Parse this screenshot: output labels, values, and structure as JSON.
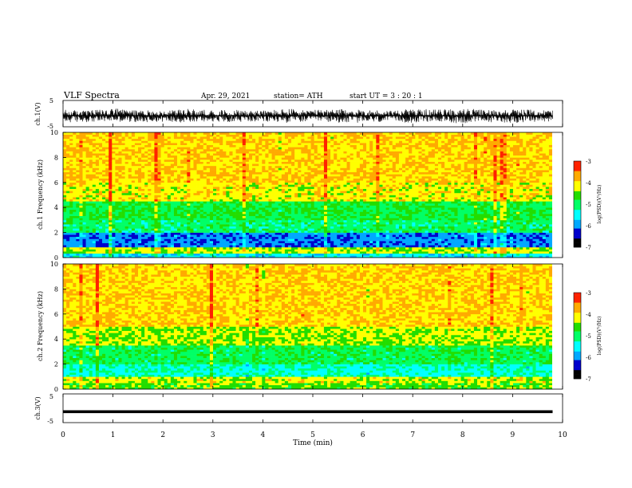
{
  "header": {
    "title": "VLF  Spectra",
    "date": "Apr. 29, 2021",
    "station": "station= ATH",
    "start": "start  UT  =    3  : 20 : 1"
  },
  "chart_data": [
    {
      "type": "line",
      "name": "ch1-waveform",
      "ylabel": "ch.1(V)",
      "ylim": [
        -5,
        5
      ],
      "yticks": [
        "5",
        "-5"
      ],
      "x": [
        0.0,
        0.5,
        1.0,
        1.5,
        2.0,
        2.5,
        3.0,
        3.5,
        4.0,
        4.5,
        5.0,
        5.5,
        6.0,
        6.5,
        7.0,
        7.5,
        8.0,
        8.5,
        9.0,
        9.5,
        9.8
      ],
      "y_range_low": [
        -3.5,
        -3.2,
        -3.0,
        -3.4,
        -3.1,
        -3.6,
        -3.0,
        -3.3,
        -3.2,
        -3.5,
        -3.0,
        -3.4,
        -3.6,
        -3.2,
        -3.5,
        -3.1,
        -3.8,
        -3.3,
        -3.5,
        -3.2,
        -3.0
      ],
      "y_range_high": [
        1.5,
        1.2,
        2.0,
        1.4,
        1.1,
        1.8,
        1.3,
        1.6,
        1.2,
        1.9,
        1.4,
        1.7,
        1.5,
        1.3,
        1.8,
        1.6,
        2.0,
        1.4,
        1.7,
        1.5,
        1.3
      ],
      "y_mean": -0.8
    },
    {
      "type": "heatmap",
      "name": "ch1-spectrogram",
      "ylabel": "ch.1  Frequency  (kHz)",
      "xlim": [
        0,
        10
      ],
      "ylim": [
        0,
        10
      ],
      "yticks": [
        "0",
        "2",
        "4",
        "6",
        "8",
        "10"
      ],
      "colorbar": {
        "label": "log(PSD)(V²/Hz)",
        "ticks": [
          "-3",
          "-4",
          "-5",
          "-6",
          "-7"
        ],
        "range": [
          -7,
          -3
        ]
      },
      "frequency_bands_khz": [
        {
          "from": 0.0,
          "to": 0.4,
          "log_psd": -5.5
        },
        {
          "from": 0.4,
          "to": 0.9,
          "log_psd": -4.3
        },
        {
          "from": 0.9,
          "to": 2.0,
          "log_psd": -6.0
        },
        {
          "from": 2.0,
          "to": 3.0,
          "log_psd": -5.0
        },
        {
          "from": 3.0,
          "to": 4.5,
          "log_psd": -4.8
        },
        {
          "from": 4.5,
          "to": 6.0,
          "log_psd": -4.1
        },
        {
          "from": 6.0,
          "to": 10.0,
          "log_psd": -3.9
        }
      ]
    },
    {
      "type": "heatmap",
      "name": "ch2-spectrogram",
      "ylabel": "ch.2  Frequency  (kHz)",
      "xlim": [
        0,
        10
      ],
      "ylim": [
        0,
        10
      ],
      "yticks": [
        "0",
        "2",
        "4",
        "6",
        "8",
        "10"
      ],
      "colorbar": {
        "label": "log(PSD)(V²/Hz)",
        "ticks": [
          "-3",
          "-4",
          "-5",
          "-6",
          "-7"
        ],
        "range": [
          -7,
          -3
        ]
      },
      "frequency_bands_khz": [
        {
          "from": 0.0,
          "to": 0.5,
          "log_psd": -4.5
        },
        {
          "from": 0.5,
          "to": 1.0,
          "log_psd": -4.2
        },
        {
          "from": 1.0,
          "to": 2.0,
          "log_psd": -5.3
        },
        {
          "from": 2.0,
          "to": 3.5,
          "log_psd": -4.9
        },
        {
          "from": 3.5,
          "to": 5.0,
          "log_psd": -4.3
        },
        {
          "from": 5.0,
          "to": 10.0,
          "log_psd": -3.9
        }
      ]
    },
    {
      "type": "line",
      "name": "ch3-waveform",
      "ylabel": "ch.3(V)",
      "ylim": [
        -5,
        5
      ],
      "yticks": [
        "5",
        "-5"
      ],
      "x": [
        0,
        9.8
      ],
      "y": [
        -1.2,
        -1.2
      ],
      "xlabel": "Time  (min)",
      "xlim": [
        0,
        10
      ],
      "xticks": [
        "0",
        "1",
        "2",
        "3",
        "4",
        "5",
        "6",
        "7",
        "8",
        "9",
        "10"
      ]
    }
  ],
  "colors": {
    "waveform": "#000000",
    "scale": [
      "#000000",
      "#0000cc",
      "#00a8ff",
      "#00ffff",
      "#00ff66",
      "#22dd00",
      "#ffff00",
      "#ffaa00",
      "#ff2200",
      "#ffffff"
    ]
  }
}
